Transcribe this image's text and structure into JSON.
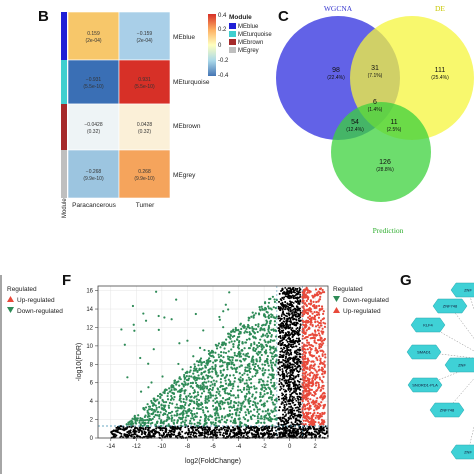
{
  "panels": {
    "b": "B",
    "c": "C",
    "f": "F",
    "g": "G"
  },
  "heatmap": {
    "module_axis_label": "Module",
    "columns": [
      "Paracancerous",
      "Tumer"
    ],
    "rows": [
      {
        "label": "MEblue",
        "color": "#1f1fd6",
        "cells": [
          {
            "value": "0.159",
            "p": "(2e-04)",
            "color": "#f7c76a"
          },
          {
            "value": "−0.159",
            "p": "(2e-04)",
            "color": "#a9cfe8"
          }
        ]
      },
      {
        "label": "MEturquoise",
        "color": "#3fcfcf",
        "cells": [
          {
            "value": "−0.931",
            "p": "(5.5e-10)",
            "color": "#3a6fb5"
          },
          {
            "value": "0.931",
            "p": "(5.5e-10)",
            "color": "#d73027"
          }
        ]
      },
      {
        "label": "MEbrown",
        "color": "#a52a2a",
        "cells": [
          {
            "value": "−0.0428",
            "p": "(0.32)",
            "color": "#eef4f6"
          },
          {
            "value": "0.0428",
            "p": "(0.32)",
            "color": "#fbf0d8"
          }
        ]
      },
      {
        "label": "MEgrey",
        "color": "#bfbfbf",
        "cells": [
          {
            "value": "−0.268",
            "p": "(9.9e-10)",
            "color": "#9cc5e0"
          },
          {
            "value": "0.268",
            "p": "(9.9e-10)",
            "color": "#f5a45c"
          }
        ]
      }
    ],
    "colorbar": {
      "ticks": [
        "0.4",
        "0.2",
        "0",
        "-0.2",
        "-0.4"
      ],
      "colors": [
        "#d73027",
        "#fdae61",
        "#ffffbf",
        "#abd9e9",
        "#4575b4"
      ]
    },
    "legend": {
      "title": "Module",
      "items": [
        {
          "label": "MEblue",
          "color": "#1f1fd6"
        },
        {
          "label": "MEturquoise",
          "color": "#3fcfcf"
        },
        {
          "label": "MEbrown",
          "color": "#a52a2a"
        },
        {
          "label": "MEgrey",
          "color": "#bfbfbf"
        }
      ]
    }
  },
  "venn": {
    "sets": [
      {
        "name": "WGCNA",
        "color": "#5a5ae6"
      },
      {
        "name": "DE",
        "color": "#f5f53c"
      },
      {
        "name": "Prediction",
        "color": "#3cd23c"
      }
    ],
    "regions": [
      {
        "id": "wgcna_only",
        "count": "98",
        "pct": "(22.4%)"
      },
      {
        "id": "de_only",
        "count": "111",
        "pct": "(25.4%)"
      },
      {
        "id": "wgcna_de",
        "count": "31",
        "pct": "(7.1%)"
      },
      {
        "id": "center",
        "count": "6",
        "pct": "(1.4%)"
      },
      {
        "id": "wgcna_pred",
        "count": "54",
        "pct": "(12.4%)"
      },
      {
        "id": "de_pred",
        "count": "11",
        "pct": "(2.5%)"
      },
      {
        "id": "pred_only",
        "count": "126",
        "pct": "(28.8%)"
      }
    ]
  },
  "left_legend": {
    "title": "Regulated",
    "items": [
      {
        "label": "Up-regulated",
        "color": "#e8493a",
        "shape": "up"
      },
      {
        "label": "Down-regulated",
        "color": "#2e8b57",
        "shape": "down"
      }
    ]
  },
  "volcano": {
    "xlabel": "log2(FoldChange)",
    "ylabel": "-log10(FDR)",
    "xticks": [
      "-14",
      "-12",
      "-10",
      "-8",
      "-6",
      "-4",
      "-2",
      "0",
      "2"
    ],
    "yticks": [
      "0",
      "2",
      "4",
      "6",
      "8",
      "10",
      "12",
      "14",
      "16"
    ],
    "legend": {
      "title": "Regulated",
      "items": [
        {
          "label": "Down-regulated",
          "color": "#2e8b57",
          "shape": "down"
        },
        {
          "label": "Up-regulated",
          "color": "#e8493a",
          "shape": "up"
        }
      ]
    },
    "colors": {
      "down": "#2e8b57",
      "up": "#e8493a",
      "ns": "#000000",
      "threshold": "#3a8fb0"
    }
  },
  "network": {
    "node_color": "#3fd1d6",
    "nodes": [
      "ZNF",
      "ZNF748",
      "KLF4",
      "SMAD1",
      "ZNF",
      "SNORD1-PLA",
      "ZNF748",
      "ZNF"
    ]
  },
  "chart_data": [
    {
      "type": "heatmap",
      "rows": [
        "MEblue",
        "MEturquoise",
        "MEbrown",
        "MEgrey"
      ],
      "columns": [
        "Paracancerous",
        "Tumer"
      ],
      "values": [
        [
          0.159,
          -0.159
        ],
        [
          -0.931,
          0.931
        ],
        [
          -0.0428,
          0.0428
        ],
        [
          -0.268,
          0.268
        ]
      ],
      "p_values": [
        "2e-04",
        "5.5e-10",
        "0.32",
        "9.9e-10"
      ],
      "colorbar_range": [
        -0.4,
        0.4
      ]
    },
    {
      "type": "venn",
      "sets": [
        "WGCNA",
        "DE",
        "Prediction"
      ],
      "values": {
        "WGCNA only": 98,
        "DE only": 111,
        "WGCNA&DE": 31,
        "WGCNA&DE&Prediction": 6,
        "WGCNA&Prediction": 54,
        "DE&Prediction": 11,
        "Prediction only": 126
      }
    },
    {
      "type": "scatter",
      "xlabel": "log2(FoldChange)",
      "ylabel": "-log10(FDR)",
      "xlim": [
        -15,
        3
      ],
      "ylim": [
        0,
        16.5
      ],
      "series": [
        {
          "name": "Down-regulated"
        },
        {
          "name": "Up-regulated"
        }
      ]
    }
  ]
}
